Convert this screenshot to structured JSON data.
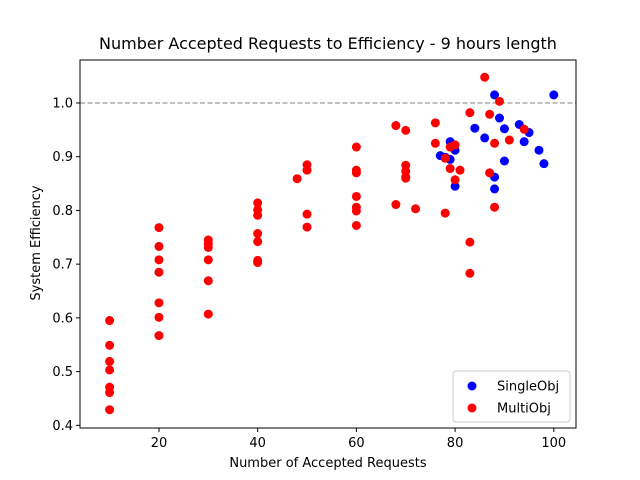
{
  "chart_data": {
    "type": "scatter",
    "title": "Number Accepted Requests to Efficiency - 9 hours length",
    "xlabel": "Number of Accepted Requests",
    "ylabel": "System Efficiency",
    "xlim": [
      4,
      104.5
    ],
    "ylim": [
      0.395,
      1.08
    ],
    "xticks": [
      20,
      40,
      60,
      80,
      100
    ],
    "xtick_labels": [
      "20",
      "40",
      "60",
      "80",
      "100"
    ],
    "yticks": [
      0.4,
      0.5,
      0.6,
      0.7,
      0.8,
      0.9,
      1.0
    ],
    "ytick_labels": [
      "0.4",
      "0.5",
      "0.6",
      "0.7",
      "0.8",
      "0.9",
      "1.0"
    ],
    "reference_line": {
      "y": 1.0,
      "style": "dashed",
      "color": "#808080"
    },
    "grid": false,
    "legend_position": "lower-right",
    "series": [
      {
        "name": "SingleObj",
        "color": "#0000ff",
        "points": [
          [
            77,
            0.902
          ],
          [
            78,
            0.899
          ],
          [
            79,
            0.928
          ],
          [
            79,
            0.895
          ],
          [
            80,
            0.912
          ],
          [
            80,
            0.845
          ],
          [
            84,
            0.953
          ],
          [
            86,
            0.935
          ],
          [
            88,
            1.015
          ],
          [
            88,
            0.862
          ],
          [
            88,
            0.84
          ],
          [
            89,
            0.972
          ],
          [
            90,
            0.952
          ],
          [
            90,
            0.892
          ],
          [
            93,
            0.96
          ],
          [
            94,
            0.928
          ],
          [
            95,
            0.945
          ],
          [
            97,
            0.912
          ],
          [
            98,
            0.887
          ],
          [
            100,
            1.015
          ]
        ]
      },
      {
        "name": "MultiObj",
        "color": "#ff0000",
        "points": [
          [
            10,
            0.595
          ],
          [
            10,
            0.549
          ],
          [
            10,
            0.519
          ],
          [
            10,
            0.503
          ],
          [
            10,
            0.471
          ],
          [
            10,
            0.461
          ],
          [
            10,
            0.429
          ],
          [
            20,
            0.768
          ],
          [
            20,
            0.733
          ],
          [
            20,
            0.708
          ],
          [
            20,
            0.685
          ],
          [
            20,
            0.628
          ],
          [
            20,
            0.601
          ],
          [
            20,
            0.567
          ],
          [
            30,
            0.745
          ],
          [
            30,
            0.738
          ],
          [
            30,
            0.731
          ],
          [
            30,
            0.708
          ],
          [
            30,
            0.669
          ],
          [
            30,
            0.607
          ],
          [
            40,
            0.814
          ],
          [
            40,
            0.801
          ],
          [
            40,
            0.791
          ],
          [
            40,
            0.757
          ],
          [
            40,
            0.742
          ],
          [
            40,
            0.707
          ],
          [
            40,
            0.703
          ],
          [
            48,
            0.859
          ],
          [
            50,
            0.885
          ],
          [
            50,
            0.875
          ],
          [
            50,
            0.793
          ],
          [
            50,
            0.769
          ],
          [
            60,
            0.918
          ],
          [
            60,
            0.875
          ],
          [
            60,
            0.87
          ],
          [
            60,
            0.826
          ],
          [
            60,
            0.806
          ],
          [
            60,
            0.799
          ],
          [
            60,
            0.772
          ],
          [
            68,
            0.958
          ],
          [
            68,
            0.811
          ],
          [
            70,
            0.949
          ],
          [
            70,
            0.884
          ],
          [
            70,
            0.873
          ],
          [
            70,
            0.862
          ],
          [
            70,
            0.86
          ],
          [
            72,
            0.803
          ],
          [
            76,
            0.963
          ],
          [
            76,
            0.925
          ],
          [
            78,
            0.897
          ],
          [
            78,
            0.795
          ],
          [
            79,
            0.918
          ],
          [
            79,
            0.878
          ],
          [
            80,
            0.922
          ],
          [
            80,
            0.857
          ],
          [
            81,
            0.875
          ],
          [
            83,
            0.982
          ],
          [
            83,
            0.741
          ],
          [
            83,
            0.683
          ],
          [
            86,
            1.048
          ],
          [
            87,
            0.979
          ],
          [
            87,
            0.87
          ],
          [
            88,
            0.925
          ],
          [
            88,
            0.806
          ],
          [
            89,
            1.003
          ],
          [
            91,
            0.931
          ],
          [
            94,
            0.951
          ]
        ]
      }
    ]
  }
}
